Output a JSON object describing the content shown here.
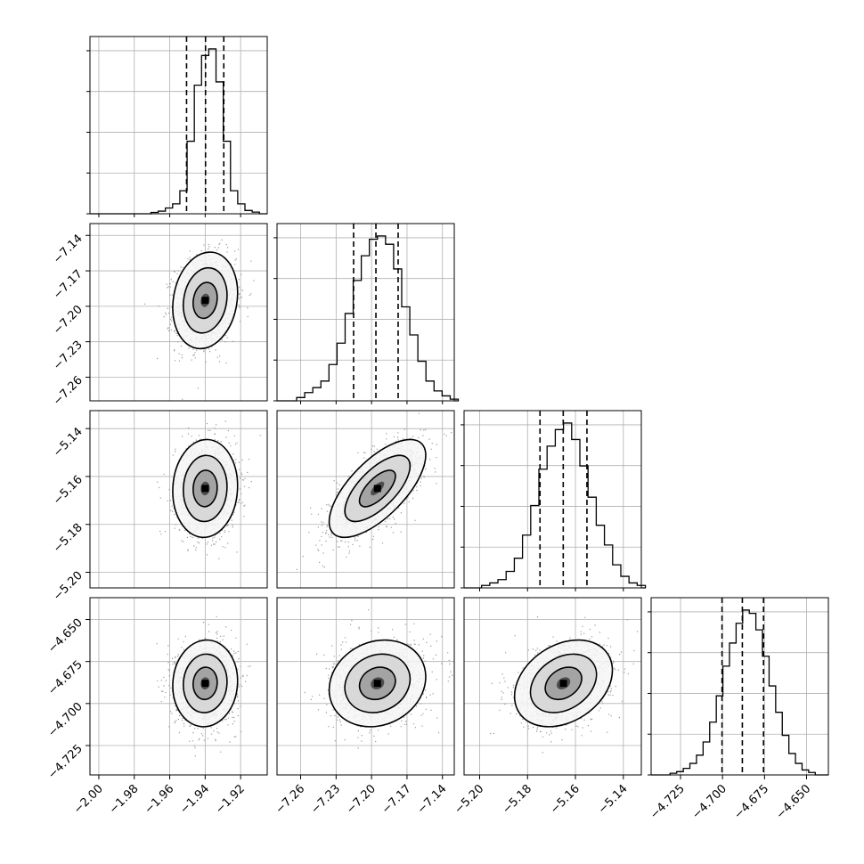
{
  "chart_data": {
    "type": "corner",
    "parameters": [
      {
        "mean": -1.94,
        "std": 0.0085,
        "range": [
          -2.005,
          -1.905
        ],
        "ticks": [
          -2.0,
          -1.98,
          -1.96,
          -1.94,
          -1.92
        ],
        "tick_labels": [
          "−2.00",
          "−1.98",
          "−1.96",
          "−1.94",
          "−1.92"
        ],
        "quantiles": [
          -1.9505,
          -1.9398,
          -1.9295
        ]
      },
      {
        "mean": -7.195,
        "std": 0.019,
        "range": [
          -7.28,
          -7.13
        ],
        "ticks": [
          -7.26,
          -7.23,
          -7.2,
          -7.17,
          -7.14
        ],
        "tick_labels": [
          "−7.26",
          "−7.23",
          "−7.20",
          "−7.17",
          "−7.14"
        ],
        "quantiles": [
          -7.2152,
          -7.1963,
          -7.1775
        ]
      },
      {
        "mean": -5.165,
        "std": 0.0095,
        "range": [
          -5.2065,
          -5.1325
        ],
        "ticks": [
          -5.2,
          -5.18,
          -5.16,
          -5.14
        ],
        "tick_labels": [
          "−5.20",
          "−5.18",
          "−5.16",
          "−5.14"
        ],
        "quantiles": [
          -5.1748,
          -5.1651,
          -5.1552
        ]
      },
      {
        "mean": -4.688,
        "std": 0.012,
        "range": [
          -4.7425,
          -4.637
        ],
        "ticks": [
          -4.725,
          -4.7,
          -4.675,
          -4.65
        ],
        "tick_labels": [
          "−4.725",
          "−4.700",
          "−4.675",
          "−4.650"
        ],
        "quantiles": [
          -4.7003,
          -4.6882,
          -4.6756
        ]
      }
    ],
    "histogram_values": [
      [
        0.008,
        0.016,
        0.035,
        0.06,
        0.14,
        0.44,
        0.78,
        0.96,
        1.0,
        0.8,
        0.44,
        0.14,
        0.06,
        0.02,
        0.01
      ],
      [
        0.02,
        0.05,
        0.08,
        0.12,
        0.22,
        0.35,
        0.53,
        0.73,
        0.88,
        0.98,
        1.0,
        0.95,
        0.8,
        0.57,
        0.4,
        0.24,
        0.12,
        0.06,
        0.03,
        0.01
      ],
      [
        0.015,
        0.03,
        0.05,
        0.1,
        0.18,
        0.32,
        0.5,
        0.72,
        0.86,
        0.96,
        1.0,
        0.9,
        0.74,
        0.55,
        0.38,
        0.26,
        0.14,
        0.07,
        0.03,
        0.015
      ],
      [
        0.01,
        0.02,
        0.04,
        0.07,
        0.12,
        0.2,
        0.32,
        0.48,
        0.66,
        0.8,
        0.92,
        1.0,
        0.98,
        0.88,
        0.72,
        0.54,
        0.38,
        0.24,
        0.13,
        0.07,
        0.03,
        0.015
      ]
    ],
    "correlations": {
      "1-0": 0.15,
      "2-0": 0.05,
      "2-1": 0.68,
      "3-0": 0.05,
      "3-1": 0.15,
      "3-2": 0.3
    },
    "y_axis_params": [
      1,
      2,
      3
    ],
    "x_axis_params": [
      0,
      1,
      2,
      3
    ],
    "grid": true,
    "quantile_style": "dashed"
  }
}
